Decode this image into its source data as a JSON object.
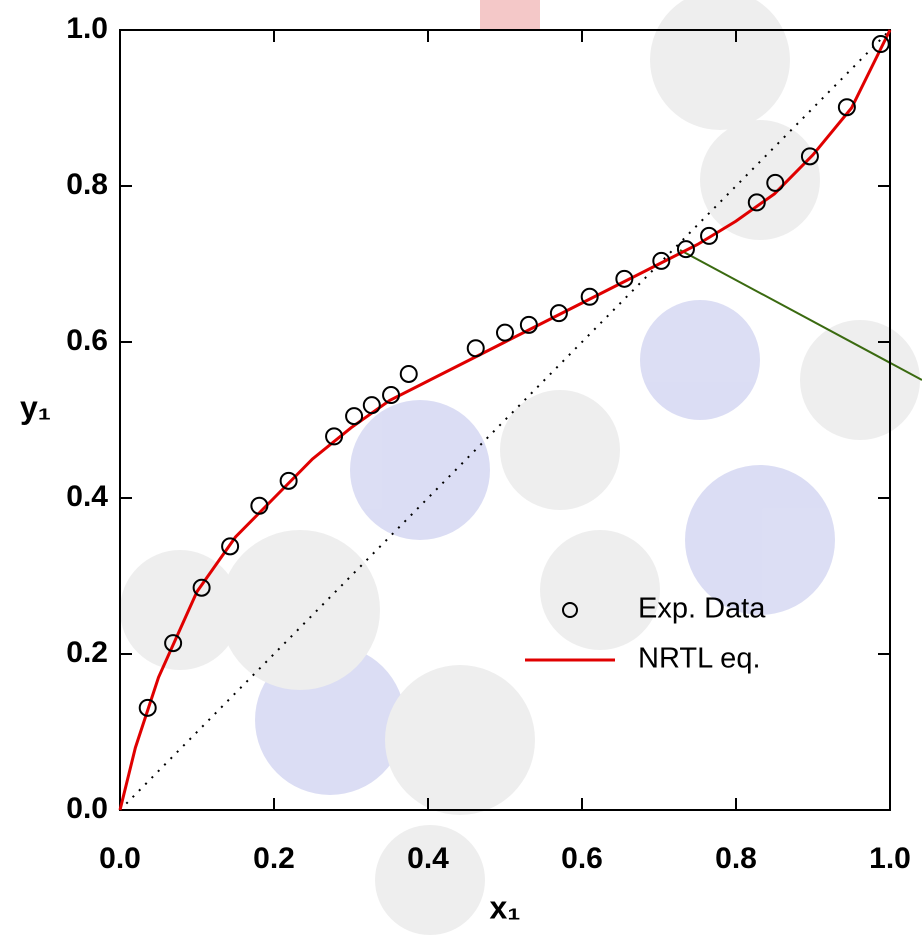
{
  "chart_data": {
    "type": "scatter",
    "xlabel": "x₁",
    "ylabel": "y₁",
    "xlim": [
      0,
      1
    ],
    "ylim": [
      0,
      1
    ],
    "xticks": [
      {
        "value": 0,
        "label": "0.0"
      },
      0.2,
      0.4,
      0.6,
      0.8,
      {
        "value": 1,
        "label": "1.0"
      }
    ],
    "yticks": [
      {
        "value": 0,
        "label": "0.0"
      },
      0.2,
      0.4,
      0.6,
      0.8,
      {
        "value": 1,
        "label": "1.0"
      }
    ],
    "series": [
      {
        "name": "Exp. Data",
        "type": "scatter",
        "color": "#000000",
        "x": [
          0.036,
          0.069,
          0.106,
          0.143,
          0.181,
          0.219,
          0.278,
          0.304,
          0.327,
          0.352,
          0.375,
          0.462,
          0.5,
          0.531,
          0.57,
          0.61,
          0.655,
          0.703,
          0.735,
          0.765,
          0.827,
          0.851,
          0.896,
          0.944,
          0.988
        ],
        "values": [
          0.131,
          0.214,
          0.285,
          0.338,
          0.39,
          0.422,
          0.479,
          0.505,
          0.519,
          0.532,
          0.559,
          0.592,
          0.612,
          0.622,
          0.637,
          0.658,
          0.681,
          0.704,
          0.719,
          0.736,
          0.779,
          0.804,
          0.838,
          0.901,
          0.982
        ]
      },
      {
        "name": "NRTL eq.",
        "type": "line",
        "color": "#e00000",
        "x": [
          0,
          0.02,
          0.05,
          0.1,
          0.15,
          0.2,
          0.25,
          0.3,
          0.35,
          0.4,
          0.45,
          0.5,
          0.55,
          0.6,
          0.65,
          0.7,
          0.75,
          0.8,
          0.85,
          0.9,
          0.95,
          1
        ],
        "values": [
          0,
          0.08,
          0.17,
          0.28,
          0.35,
          0.4,
          0.45,
          0.49,
          0.525,
          0.55,
          0.575,
          0.6,
          0.625,
          0.65,
          0.675,
          0.7,
          0.725,
          0.755,
          0.79,
          0.84,
          0.9,
          1
        ]
      },
      {
        "type": "line",
        "style": "dotted",
        "color": "#000000",
        "x": [
          0,
          1
        ],
        "values": [
          0,
          1
        ]
      }
    ]
  }
}
